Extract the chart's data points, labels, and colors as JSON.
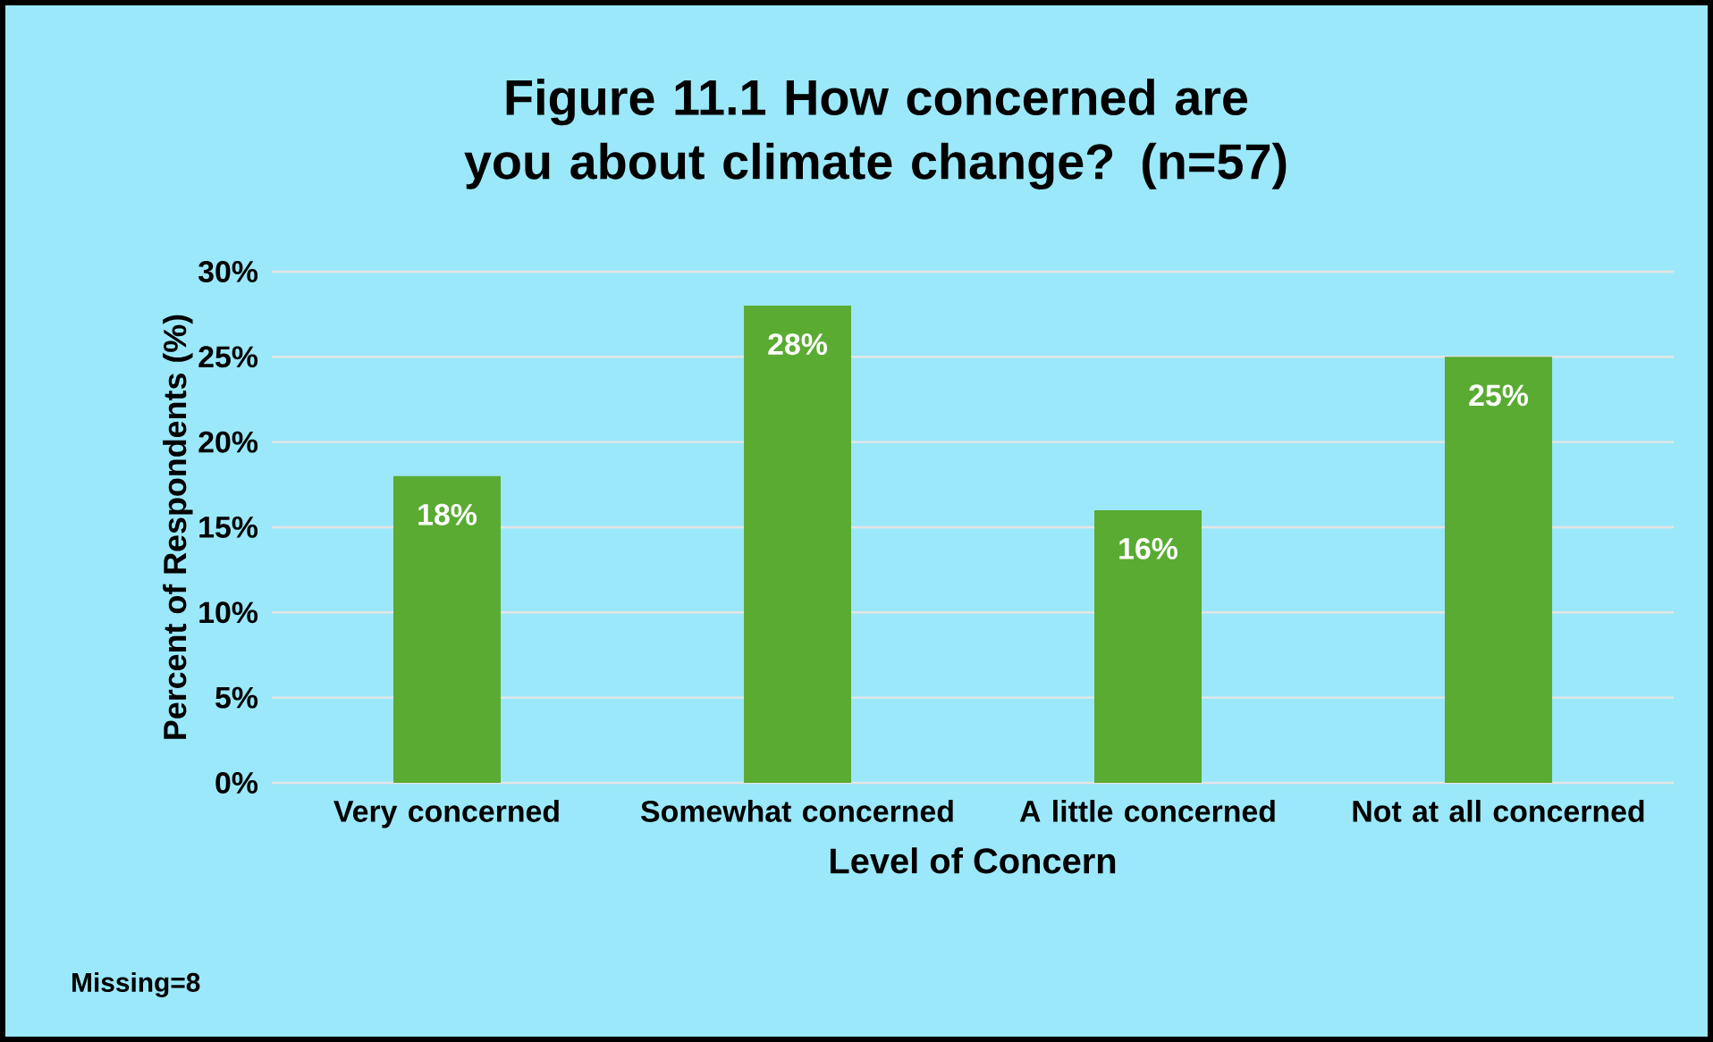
{
  "chart_data": {
    "type": "bar",
    "title": "Figure 11.1 How concerned are you about climate change? (n=57)",
    "xlabel": "Level of Concern",
    "ylabel": "Percent of Respondents (%)",
    "categories": [
      "Very concerned",
      "Somewhat concerned",
      "A little concerned",
      "Not at all concerned"
    ],
    "values": [
      18,
      28,
      16,
      25
    ],
    "value_labels": [
      "18%",
      "28%",
      "16%",
      "25%"
    ],
    "color": "#5aab32",
    "ylim": [
      0,
      30
    ],
    "yticks": [
      {
        "value": 0,
        "label": "0%"
      },
      {
        "value": 5,
        "label": "5%"
      },
      {
        "value": 10,
        "label": "10%"
      },
      {
        "value": 15,
        "label": "15%"
      },
      {
        "value": 20,
        "label": "20%"
      },
      {
        "value": 25,
        "label": "25%"
      },
      {
        "value": 30,
        "label": "30%"
      }
    ],
    "grid": "y",
    "annotations": [
      "Missing=8"
    ]
  }
}
